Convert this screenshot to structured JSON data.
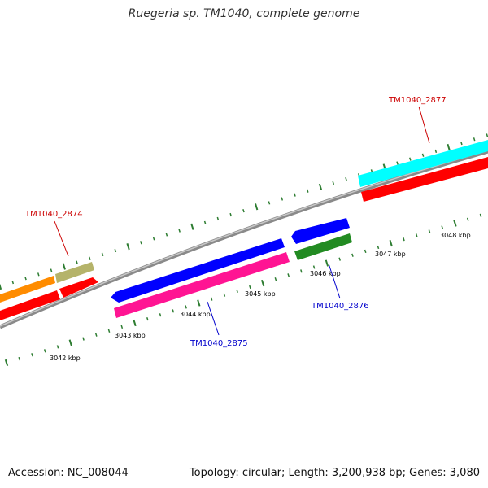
{
  "title": "Ruegeria sp. TM1040, complete genome",
  "footer": {
    "accession": "Accession: NC_008044",
    "summary": "Topology: circular; Length: 3,200,938 bp; Genes: 3,080"
  },
  "colors": {
    "backbone": "#808080",
    "tick": "#2e7d32",
    "forward_label": "#cc0000",
    "reverse_label": "#0000cc"
  },
  "scale_labels": [
    "3042 kbp",
    "3043 kbp",
    "3044 kbp",
    "3045 kbp",
    "3046 kbp",
    "3047 kbp",
    "3048 kbp"
  ],
  "genes": [
    {
      "id": "gene-orange",
      "color": "#ff8c00",
      "strand": "forward",
      "label": ""
    },
    {
      "id": "gene-khaki",
      "color": "#b5b36a",
      "strand": "forward",
      "label": "TM1040_2874"
    },
    {
      "id": "gene-red-2874",
      "color": "#ff0000",
      "strand": "forward",
      "label": ""
    },
    {
      "id": "gene-red-left",
      "color": "#ff0000",
      "strand": "forward",
      "label": ""
    },
    {
      "id": "gene-blue-2875",
      "color": "#0000ff",
      "strand": "reverse",
      "label": ""
    },
    {
      "id": "gene-magenta-2875",
      "color": "#ff1493",
      "strand": "reverse",
      "label": "TM1040_2875"
    },
    {
      "id": "gene-blue-2876",
      "color": "#0000ff",
      "strand": "reverse",
      "label": ""
    },
    {
      "id": "gene-green-2876",
      "color": "#228b22",
      "strand": "reverse",
      "label": "TM1040_2876"
    },
    {
      "id": "gene-cyan-2877",
      "color": "#00ffff",
      "strand": "forward",
      "label": "TM1040_2877"
    },
    {
      "id": "gene-red-2877",
      "color": "#ff0000",
      "strand": "forward",
      "label": ""
    }
  ],
  "labels": {
    "l2874": "TM1040_2874",
    "l2875": "TM1040_2875",
    "l2876": "TM1040_2876",
    "l2877": "TM1040_2877"
  }
}
